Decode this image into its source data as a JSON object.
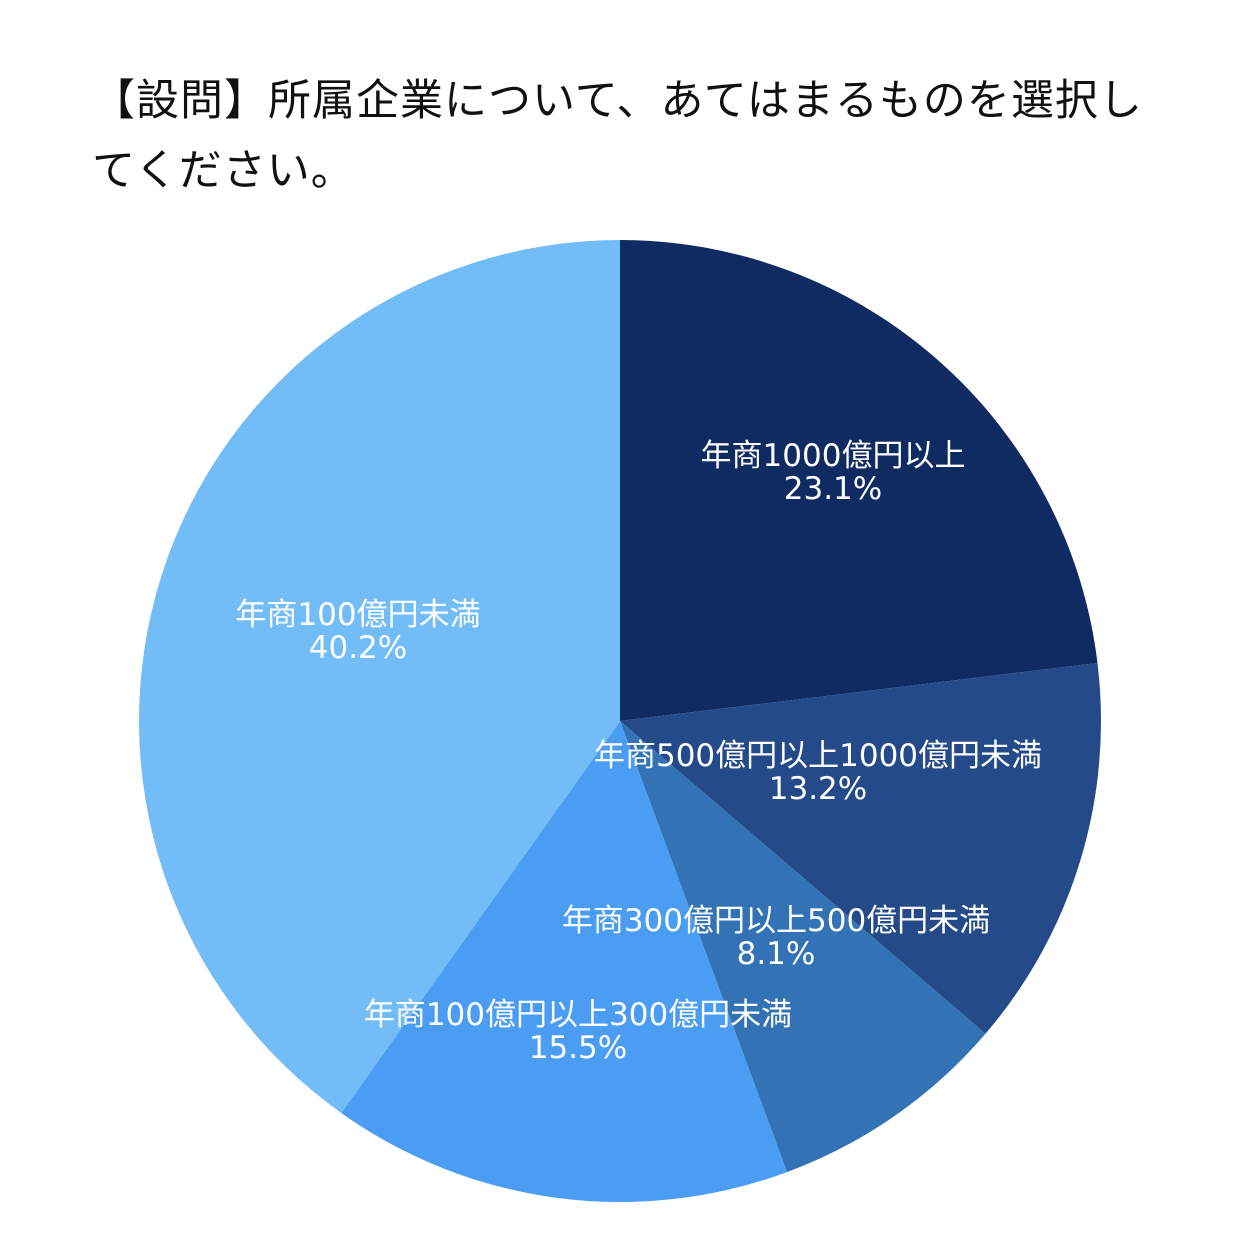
{
  "title": "【設問】所属企業について、あてはまるものを選択してください。",
  "chart_data": {
    "type": "pie",
    "title": "【設問】所属企業について、あてはまるものを選択してください。",
    "start_angle_deg": 0,
    "direction": "clockwise",
    "slices": [
      {
        "label": "年商1000億円以上",
        "value": 23.1,
        "value_label": "23.1%",
        "color": "#0f2b62"
      },
      {
        "label": "年商500億円以上1000億円未満",
        "value": 13.2,
        "value_label": "13.2%",
        "color": "#244a89"
      },
      {
        "label": "年商300億円以上500億円未満",
        "value": 8.1,
        "value_label": "8.1%",
        "color": "#3373b5"
      },
      {
        "label": "年商100億円以上300億円未満",
        "value": 15.5,
        "value_label": "15.5%",
        "color": "#4a9df3"
      },
      {
        "label": "年商100億円未満",
        "value": 40.2,
        "value_label": "40.2%",
        "color": "#72bcf7"
      }
    ]
  }
}
